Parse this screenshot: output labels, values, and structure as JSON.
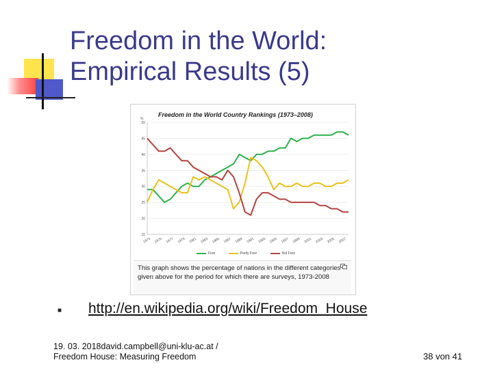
{
  "slide": {
    "title_line1": "Freedom in the World:",
    "title_line2": "Empirical Results (5)",
    "bullet_link": "http://en.wikipedia.org/wiki/Freedom_House",
    "footer_line1": "19. 03. 2018david.campbell@uni-klu-ac.at /",
    "footer_line2": "Freedom House: Measuring Freedom",
    "page_number": "38 von 41"
  },
  "figure": {
    "caption": "This graph shows the percentage of nations in the different categories given above for the period for which there are surveys, 1973-2008",
    "icon": "expand-icon"
  },
  "chart_data": {
    "type": "line",
    "title": "Freedom in the World Country Rankings (1973–2008)",
    "ylabel": "%",
    "ylim": [
      15,
      50
    ],
    "yticks": [
      15,
      20,
      25,
      30,
      35,
      40,
      45,
      50
    ],
    "xlim": [
      1973,
      2008
    ],
    "x_tick_labels": [
      "1973",
      "1975",
      "1977",
      "1979",
      "1981",
      "1983",
      "1985",
      "1987",
      "1989",
      "1991",
      "1993",
      "1995",
      "1997",
      "1999",
      "2001",
      "2003",
      "2005",
      "2007"
    ],
    "legend_position": "bottom",
    "grid": true,
    "x": [
      1973,
      1974,
      1975,
      1976,
      1977,
      1978,
      1979,
      1980,
      1981,
      1982,
      1983,
      1984,
      1985,
      1986,
      1987,
      1988,
      1989,
      1990,
      1991,
      1992,
      1993,
      1994,
      1995,
      1996,
      1997,
      1998,
      1999,
      2000,
      2001,
      2002,
      2003,
      2004,
      2005,
      2006,
      2007,
      2008
    ],
    "series": [
      {
        "name": "Free",
        "color": "#2bb24c",
        "values": [
          29,
          29,
          27,
          25,
          26,
          28,
          30,
          31,
          30,
          30,
          32,
          33,
          34,
          35,
          36,
          37,
          40,
          39,
          38,
          40,
          40,
          41,
          41,
          42,
          42,
          45,
          44,
          45,
          45,
          46,
          46,
          46,
          46,
          47,
          47,
          46
        ]
      },
      {
        "name": "Partly Free",
        "color": "#e8c21a",
        "values": [
          25,
          29,
          32,
          31,
          30,
          29,
          28,
          28,
          33,
          32,
          33,
          32,
          31,
          30,
          29,
          23,
          25,
          31,
          39,
          38,
          36,
          33,
          29,
          31,
          30,
          30,
          31,
          30,
          30,
          31,
          31,
          30,
          30,
          31,
          31,
          32
        ]
      },
      {
        "name": "Not Free",
        "color": "#b5423f",
        "values": [
          45,
          43,
          41,
          41,
          42,
          40,
          38,
          38,
          36,
          35,
          34,
          33,
          33,
          32,
          35,
          33,
          28,
          22,
          21,
          26,
          28,
          28,
          27,
          26,
          26,
          25,
          25,
          25,
          25,
          25,
          24,
          24,
          23,
          23,
          22,
          22
        ]
      }
    ]
  }
}
